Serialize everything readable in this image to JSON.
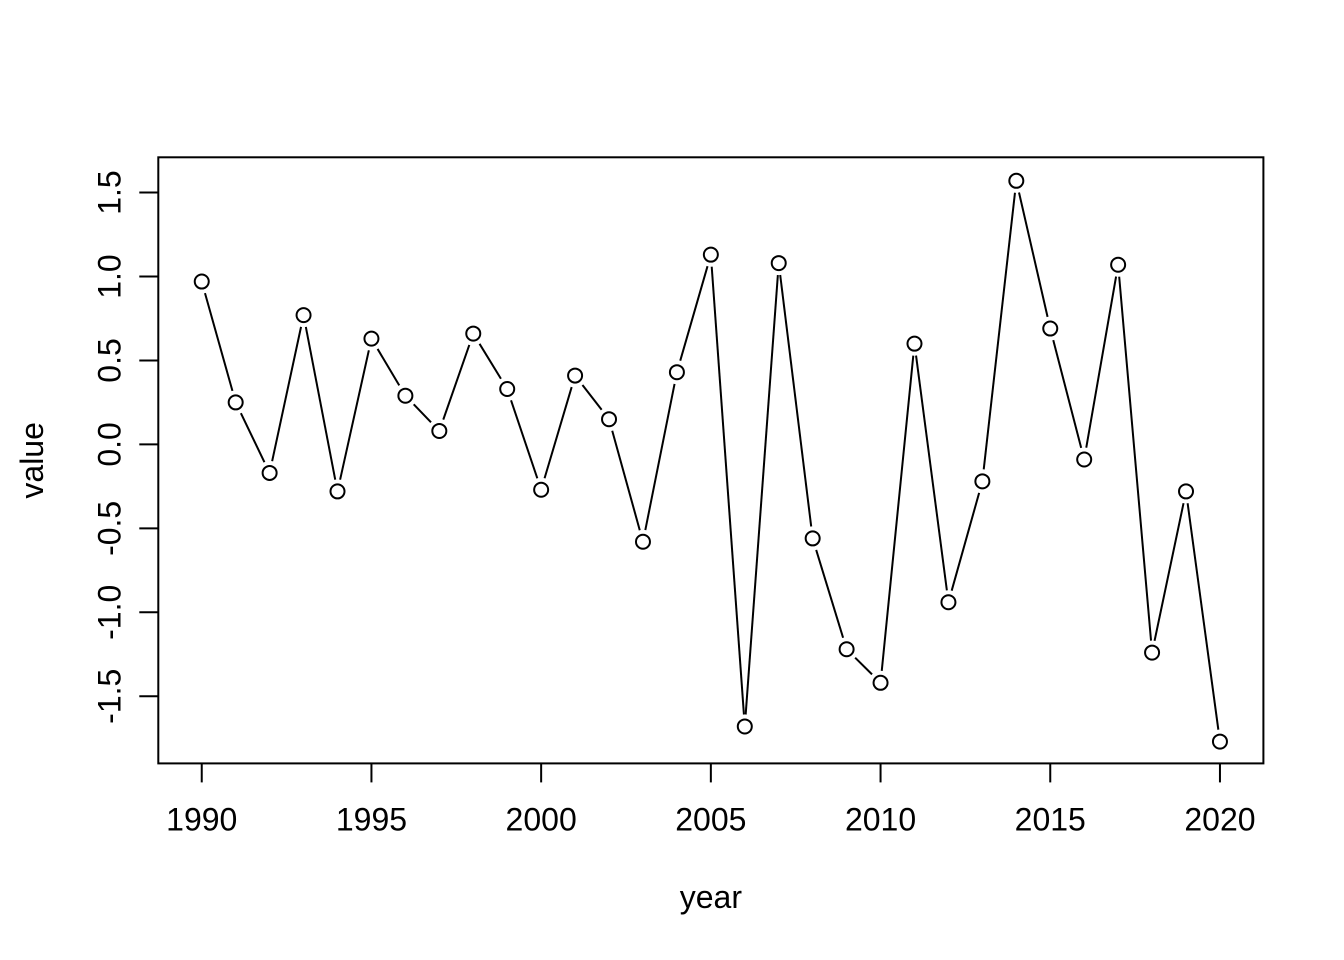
{
  "chart_data": {
    "type": "line",
    "title": "",
    "xlabel": "year",
    "ylabel": "value",
    "marker": "open-circle",
    "grid": false,
    "legend": null,
    "x": [
      1990,
      1991,
      1992,
      1993,
      1994,
      1995,
      1996,
      1997,
      1998,
      1999,
      2000,
      2001,
      2002,
      2003,
      2004,
      2005,
      2006,
      2007,
      2008,
      2009,
      2010,
      2011,
      2012,
      2013,
      2014,
      2015,
      2016,
      2017,
      2018,
      2019,
      2020
    ],
    "values": [
      0.97,
      0.25,
      -0.17,
      0.77,
      -0.28,
      0.63,
      0.29,
      0.08,
      0.66,
      0.33,
      -0.27,
      0.41,
      0.15,
      -0.58,
      0.43,
      1.13,
      -1.68,
      1.08,
      -0.56,
      -1.22,
      -1.42,
      0.6,
      -0.94,
      -0.22,
      1.57,
      0.69,
      -0.09,
      1.07,
      -1.24,
      -0.28,
      -1.77
    ],
    "xlim": [
      1988.72,
      2021.28
    ],
    "ylim": [
      -1.9,
      1.71
    ],
    "xticks": [
      1990,
      1995,
      2000,
      2005,
      2010,
      2015,
      2020
    ],
    "xtick_labels": [
      "1990",
      "1995",
      "2000",
      "2005",
      "2010",
      "2015",
      "2020"
    ],
    "yticks": [
      -1.5,
      -1.0,
      -0.5,
      0.0,
      0.5,
      1.0,
      1.5
    ],
    "ytick_labels": [
      "-1.5",
      "-1.0",
      "-0.5",
      "0.0",
      "0.5",
      "1.0",
      "1.5"
    ],
    "colors": {
      "line": "#000000",
      "marker_stroke": "#000000",
      "marker_fill": "#ffffff",
      "axis": "#000000",
      "background": "#ffffff"
    }
  }
}
